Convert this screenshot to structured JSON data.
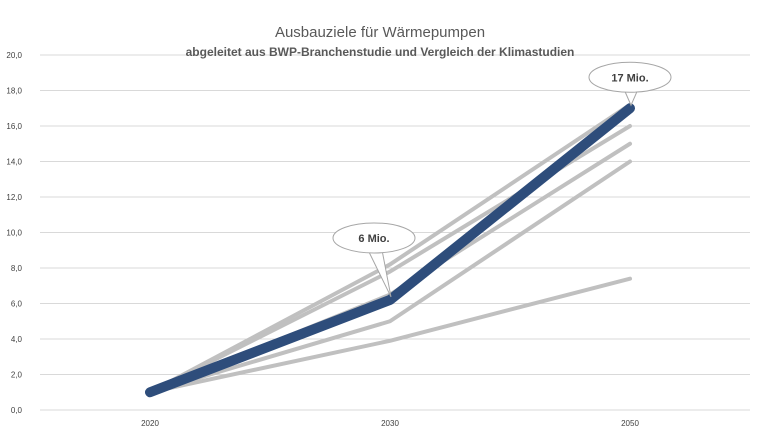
{
  "chart_data": {
    "type": "line",
    "title": "Ausbauziele für Wärmepumpen",
    "subtitle": "abgeleitet aus BWP-Branchenstudie und Vergleich der Klimastudien",
    "categories": [
      "2020",
      "2030",
      "2050"
    ],
    "ylim": [
      0,
      20
    ],
    "yticks": [
      "0,0",
      "2,0",
      "4,0",
      "6,0",
      "8,0",
      "10,0",
      "12,0",
      "14,0",
      "16,0",
      "18,0",
      "20,0"
    ],
    "grid": true,
    "series": [
      {
        "values": [
          1.0,
          8.2,
          17.2
        ],
        "color": "#c0c0c0",
        "highlight": false
      },
      {
        "values": [
          1.0,
          7.8,
          16.0
        ],
        "color": "#c0c0c0",
        "highlight": false
      },
      {
        "values": [
          1.0,
          6.5,
          15.0
        ],
        "color": "#c0c0c0",
        "highlight": false
      },
      {
        "values": [
          1.0,
          5.0,
          14.0
        ],
        "color": "#c0c0c0",
        "highlight": false
      },
      {
        "values": [
          1.0,
          3.9,
          7.4
        ],
        "color": "#c0c0c0",
        "highlight": false
      },
      {
        "values": [
          1.0,
          6.2,
          17.0
        ],
        "color": "#2e4d7b",
        "highlight": true
      }
    ],
    "annotations": [
      {
        "text": "6 Mio.",
        "category": "2030",
        "value": 6.2
      },
      {
        "text": "17 Mio.",
        "category": "2050",
        "value": 17.0
      }
    ]
  },
  "colors": {
    "grid": "#d9d9d9",
    "highlight": "#2e4d7b",
    "other_series": "#c0c0c0",
    "callout_border": "#a6a6a6"
  }
}
